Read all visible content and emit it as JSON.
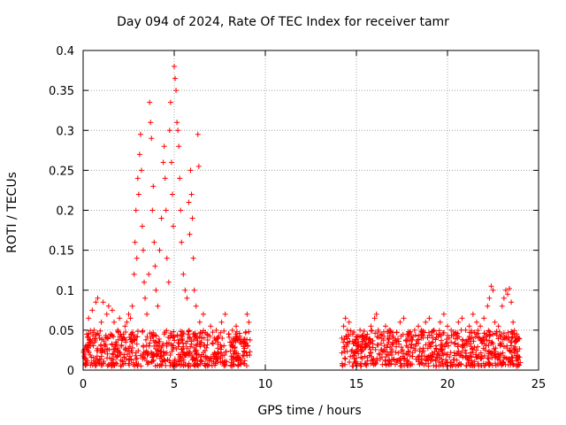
{
  "chart_data": {
    "type": "scatter",
    "title": "Day 094 of 2024, Rate Of TEC Index for receiver tamr",
    "xlabel": "GPS time / hours",
    "ylabel": "ROTI / TECUs",
    "xlim": [
      0,
      25
    ],
    "ylim": [
      0,
      0.4
    ],
    "xticks": [
      0,
      5,
      10,
      15,
      20,
      25
    ],
    "xtick_labels": [
      "0",
      "5",
      "10",
      "15",
      "20",
      "25"
    ],
    "yticks": [
      0,
      0.05,
      0.1,
      0.15,
      0.2,
      0.25,
      0.3,
      0.35,
      0.4
    ],
    "ytick_labels": [
      "0",
      "0.05",
      "0.1",
      "0.15",
      "0.2",
      "0.25",
      "0.3",
      "0.35",
      "0.4"
    ],
    "grid": true,
    "marker": "+",
    "color": "#ff0000",
    "series": [
      {
        "values": [
          [
            0.1,
            0.02
          ],
          [
            0.2,
            0.045
          ],
          [
            0.3,
            0.065
          ],
          [
            0.4,
            0.03
          ],
          [
            0.5,
            0.075
          ],
          [
            0.6,
            0.05
          ],
          [
            0.7,
            0.085
          ],
          [
            0.8,
            0.09
          ],
          [
            0.9,
            0.04
          ],
          [
            1.0,
            0.06
          ],
          [
            1.1,
            0.085
          ],
          [
            1.2,
            0.03
          ],
          [
            1.3,
            0.07
          ],
          [
            1.4,
            0.08
          ],
          [
            1.5,
            0.045
          ],
          [
            1.6,
            0.075
          ],
          [
            1.7,
            0.06
          ],
          [
            1.8,
            0.035
          ],
          [
            1.9,
            0.05
          ],
          [
            2.0,
            0.065
          ],
          [
            2.1,
            0.03
          ],
          [
            2.2,
            0.045
          ],
          [
            2.3,
            0.055
          ],
          [
            2.4,
            0.06
          ],
          [
            2.5,
            0.07
          ],
          [
            2.6,
            0.065
          ],
          [
            2.7,
            0.08
          ],
          [
            2.8,
            0.12
          ],
          [
            2.85,
            0.16
          ],
          [
            2.9,
            0.2
          ],
          [
            2.95,
            0.14
          ],
          [
            3.0,
            0.24
          ],
          [
            3.05,
            0.22
          ],
          [
            3.1,
            0.27
          ],
          [
            3.15,
            0.295
          ],
          [
            3.2,
            0.25
          ],
          [
            3.25,
            0.18
          ],
          [
            3.3,
            0.15
          ],
          [
            3.35,
            0.11
          ],
          [
            3.4,
            0.09
          ],
          [
            3.5,
            0.07
          ],
          [
            3.6,
            0.12
          ],
          [
            3.65,
            0.335
          ],
          [
            3.7,
            0.31
          ],
          [
            3.75,
            0.29
          ],
          [
            3.8,
            0.2
          ],
          [
            3.85,
            0.23
          ],
          [
            3.9,
            0.16
          ],
          [
            3.95,
            0.13
          ],
          [
            4.0,
            0.1
          ],
          [
            4.1,
            0.08
          ],
          [
            4.2,
            0.15
          ],
          [
            4.3,
            0.19
          ],
          [
            4.4,
            0.26
          ],
          [
            4.45,
            0.28
          ],
          [
            4.5,
            0.24
          ],
          [
            4.55,
            0.2
          ],
          [
            4.6,
            0.14
          ],
          [
            4.7,
            0.11
          ],
          [
            4.75,
            0.3
          ],
          [
            4.8,
            0.335
          ],
          [
            4.85,
            0.26
          ],
          [
            4.9,
            0.22
          ],
          [
            4.95,
            0.18
          ],
          [
            5.0,
            0.38
          ],
          [
            5.05,
            0.365
          ],
          [
            5.1,
            0.35
          ],
          [
            5.15,
            0.31
          ],
          [
            5.2,
            0.3
          ],
          [
            5.25,
            0.28
          ],
          [
            5.3,
            0.24
          ],
          [
            5.35,
            0.2
          ],
          [
            5.4,
            0.16
          ],
          [
            5.5,
            0.12
          ],
          [
            5.6,
            0.1
          ],
          [
            5.7,
            0.09
          ],
          [
            5.8,
            0.21
          ],
          [
            5.85,
            0.17
          ],
          [
            5.9,
            0.25
          ],
          [
            5.95,
            0.22
          ],
          [
            6.0,
            0.19
          ],
          [
            6.05,
            0.14
          ],
          [
            6.1,
            0.1
          ],
          [
            6.2,
            0.08
          ],
          [
            6.3,
            0.295
          ],
          [
            6.35,
            0.255
          ],
          [
            6.4,
            0.06
          ],
          [
            6.6,
            0.07
          ],
          [
            6.8,
            0.045
          ],
          [
            7.0,
            0.055
          ],
          [
            7.2,
            0.04
          ],
          [
            7.4,
            0.035
          ],
          [
            7.6,
            0.06
          ],
          [
            7.8,
            0.07
          ],
          [
            8.0,
            0.045
          ],
          [
            8.2,
            0.03
          ],
          [
            8.4,
            0.055
          ],
          [
            8.6,
            0.04
          ],
          [
            8.8,
            0.035
          ],
          [
            9.0,
            0.07
          ],
          [
            9.1,
            0.06
          ],
          [
            14.2,
            0.04
          ],
          [
            14.3,
            0.055
          ],
          [
            14.4,
            0.065
          ],
          [
            14.5,
            0.05
          ],
          [
            14.6,
            0.06
          ],
          [
            14.8,
            0.045
          ],
          [
            15.0,
            0.035
          ],
          [
            15.2,
            0.05
          ],
          [
            15.4,
            0.04
          ],
          [
            15.6,
            0.045
          ],
          [
            15.8,
            0.055
          ],
          [
            16.0,
            0.065
          ],
          [
            16.1,
            0.07
          ],
          [
            16.2,
            0.05
          ],
          [
            16.4,
            0.045
          ],
          [
            16.6,
            0.055
          ],
          [
            16.8,
            0.05
          ],
          [
            17.0,
            0.04
          ],
          [
            17.2,
            0.035
          ],
          [
            17.4,
            0.06
          ],
          [
            17.6,
            0.065
          ],
          [
            17.8,
            0.045
          ],
          [
            18.0,
            0.04
          ],
          [
            18.2,
            0.05
          ],
          [
            18.4,
            0.055
          ],
          [
            18.6,
            0.045
          ],
          [
            18.8,
            0.06
          ],
          [
            19.0,
            0.065
          ],
          [
            19.2,
            0.04
          ],
          [
            19.4,
            0.045
          ],
          [
            19.6,
            0.06
          ],
          [
            19.8,
            0.07
          ],
          [
            20.0,
            0.055
          ],
          [
            20.2,
            0.05
          ],
          [
            20.4,
            0.045
          ],
          [
            20.6,
            0.06
          ],
          [
            20.8,
            0.065
          ],
          [
            21.0,
            0.05
          ],
          [
            21.2,
            0.055
          ],
          [
            21.4,
            0.07
          ],
          [
            21.6,
            0.06
          ],
          [
            21.8,
            0.055
          ],
          [
            22.0,
            0.065
          ],
          [
            22.2,
            0.08
          ],
          [
            22.3,
            0.09
          ],
          [
            22.4,
            0.105
          ],
          [
            22.5,
            0.1
          ],
          [
            22.6,
            0.06
          ],
          [
            22.8,
            0.055
          ],
          [
            23.0,
            0.08
          ],
          [
            23.1,
            0.09
          ],
          [
            23.2,
            0.1
          ],
          [
            23.3,
            0.095
          ],
          [
            23.4,
            0.102
          ],
          [
            23.5,
            0.085
          ],
          [
            23.6,
            0.06
          ],
          [
            23.8,
            0.045
          ],
          [
            23.9,
            0.04
          ]
        ],
        "baseline_band": [
          {
            "x_start": 0.0,
            "x_end": 9.2,
            "y_low": 0.005,
            "y_high": 0.05
          },
          {
            "x_start": 14.2,
            "x_end": 24.0,
            "y_low": 0.005,
            "y_high": 0.05
          }
        ]
      }
    ]
  }
}
